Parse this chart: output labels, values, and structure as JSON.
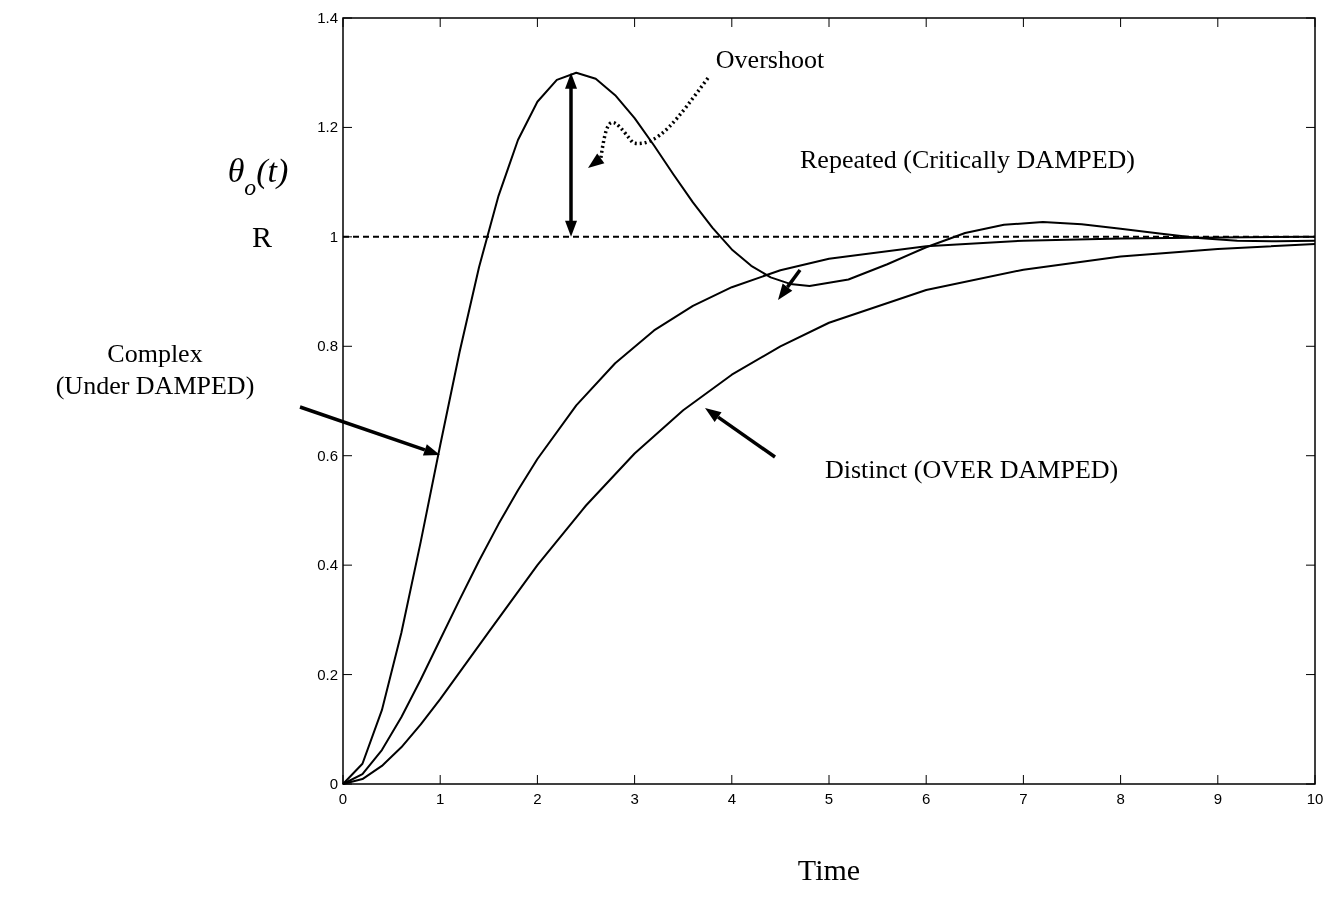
{
  "chart_data": {
    "type": "line",
    "xlabel": "Time",
    "ylabel": "θ$_{o}$(t)",
    "xlim": [
      0,
      10
    ],
    "ylim": [
      0,
      1.4
    ],
    "xticks": [
      0,
      1,
      2,
      3,
      4,
      5,
      6,
      7,
      8,
      9,
      10
    ],
    "yticks": [
      0,
      {
        "value": 0.2,
        "label": "0.2"
      },
      {
        "value": 0.4,
        "label": "0.4"
      },
      {
        "value": 0.6,
        "label": "0.6"
      },
      {
        "value": 0.8,
        "label": "0.8"
      },
      1,
      {
        "value": 1.2,
        "label": "1.2"
      },
      {
        "value": 1.4,
        "label": "1.4"
      }
    ],
    "grid": false,
    "marker": "none",
    "line_style": "solid",
    "series": [
      {
        "color": "#000000",
        "x": [
          0,
          0.2,
          0.4,
          0.6,
          0.8,
          1,
          1.2,
          1.4,
          1.6,
          1.8,
          2,
          2.2,
          2.4,
          2.6,
          2.8,
          3,
          3.2,
          3.4,
          3.6,
          3.8,
          4,
          4.2,
          4.4,
          4.6,
          4.8,
          5.2,
          5.6,
          6,
          6.4,
          6.8,
          7.2,
          7.6,
          8,
          8.4,
          8.8,
          9.2,
          9.6,
          10
        ],
        "values": [
          0,
          0.037,
          0.135,
          0.276,
          0.443,
          0.619,
          0.79,
          0.945,
          1.075,
          1.177,
          1.247,
          1.287,
          1.3,
          1.289,
          1.259,
          1.217,
          1.167,
          1.114,
          1.063,
          1.017,
          0.977,
          0.947,
          0.926,
          0.914,
          0.91,
          0.922,
          0.95,
          0.981,
          1.007,
          1.022,
          1.027,
          1.023,
          1.015,
          1.006,
          0.998,
          0.993,
          0.992,
          0.993
        ]
      },
      {
        "color": "#000000",
        "x": [
          0,
          0.2,
          0.4,
          0.6,
          0.8,
          1,
          1.2,
          1.4,
          1.6,
          1.8,
          2,
          2.4,
          2.8,
          3.2,
          3.6,
          4,
          4.5,
          5,
          6,
          7,
          8,
          9,
          10
        ],
        "values": [
          0,
          0.018,
          0.062,
          0.122,
          0.191,
          0.264,
          0.337,
          0.408,
          0.475,
          0.537,
          0.594,
          0.692,
          0.769,
          0.829,
          0.874,
          0.908,
          0.939,
          0.96,
          0.983,
          0.993,
          0.997,
          0.999,
          1
        ]
      },
      {
        "color": "#000000",
        "x": [
          0,
          0.2,
          0.4,
          0.6,
          0.8,
          1,
          1.5,
          2,
          2.5,
          3,
          3.5,
          4,
          4.5,
          5,
          6,
          7,
          8,
          9,
          10
        ],
        "values": [
          0,
          0.009,
          0.033,
          0.067,
          0.109,
          0.155,
          0.278,
          0.4,
          0.509,
          0.604,
          0.683,
          0.748,
          0.8,
          0.843,
          0.903,
          0.94,
          0.964,
          0.978,
          0.987
        ]
      }
    ],
    "ref_lines": [
      {
        "axis": "y",
        "value": 1,
        "label": "R",
        "line_style": "dashed",
        "color": "#000000"
      }
    ],
    "annotations": [
      "Overshoot",
      "Repeated (Critically DAMPED)",
      "Complex\n(Under DAMPED)",
      "Distinct (OVER DAMPED)"
    ]
  }
}
